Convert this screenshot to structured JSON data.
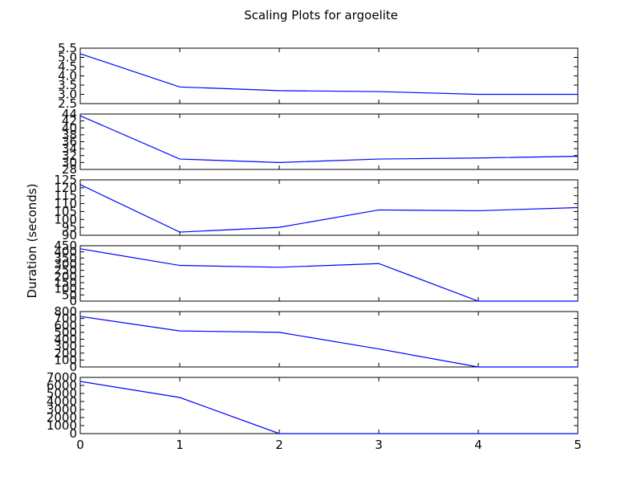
{
  "chart_data": {
    "type": "line",
    "title": "Scaling Plots for argoelite",
    "ylabel": "Duration (seconds)",
    "xlim": [
      0,
      5
    ],
    "x_ticks": [
      0,
      1,
      2,
      3,
      4,
      5
    ],
    "line_color": "#0000ff",
    "subplots": [
      {
        "x": [
          0,
          1,
          2,
          3,
          4,
          5
        ],
        "values": [
          5.2,
          3.4,
          3.2,
          3.15,
          3.0,
          3.0
        ],
        "ylim": [
          2.5,
          5.5
        ],
        "y_ticks": [
          2.5,
          3.0,
          3.5,
          4.0,
          4.5,
          5.0,
          5.5
        ]
      },
      {
        "x": [
          0,
          1,
          2,
          3,
          4,
          5
        ],
        "values": [
          43.5,
          31.0,
          30.0,
          31.0,
          31.3,
          31.8
        ],
        "ylim": [
          28,
          44
        ],
        "y_ticks": [
          28,
          30,
          32,
          34,
          36,
          38,
          40,
          42,
          44
        ]
      },
      {
        "x": [
          0,
          1,
          2,
          3,
          4,
          5
        ],
        "values": [
          122,
          92,
          95,
          106,
          105.5,
          107.5
        ],
        "ylim": [
          90,
          125
        ],
        "y_ticks": [
          90,
          95,
          100,
          105,
          110,
          115,
          120,
          125
        ]
      },
      {
        "x": [
          0,
          1,
          2,
          3,
          4,
          5
        ],
        "values": [
          425,
          290,
          275,
          305,
          0,
          0
        ],
        "ylim": [
          0,
          450
        ],
        "y_ticks": [
          0,
          50,
          100,
          150,
          200,
          250,
          300,
          350,
          400,
          450
        ]
      },
      {
        "x": [
          0,
          1,
          2,
          3,
          4,
          5
        ],
        "values": [
          730,
          520,
          500,
          260,
          0,
          0
        ],
        "ylim": [
          0,
          800
        ],
        "y_ticks": [
          0,
          100,
          200,
          300,
          400,
          500,
          600,
          700,
          800
        ]
      },
      {
        "x": [
          0,
          1,
          2,
          3,
          4,
          5
        ],
        "values": [
          6500,
          4500,
          0,
          0,
          0,
          0
        ],
        "ylim": [
          0,
          7000
        ],
        "y_ticks": [
          0,
          1000,
          2000,
          3000,
          4000,
          5000,
          6000,
          7000
        ]
      }
    ]
  }
}
